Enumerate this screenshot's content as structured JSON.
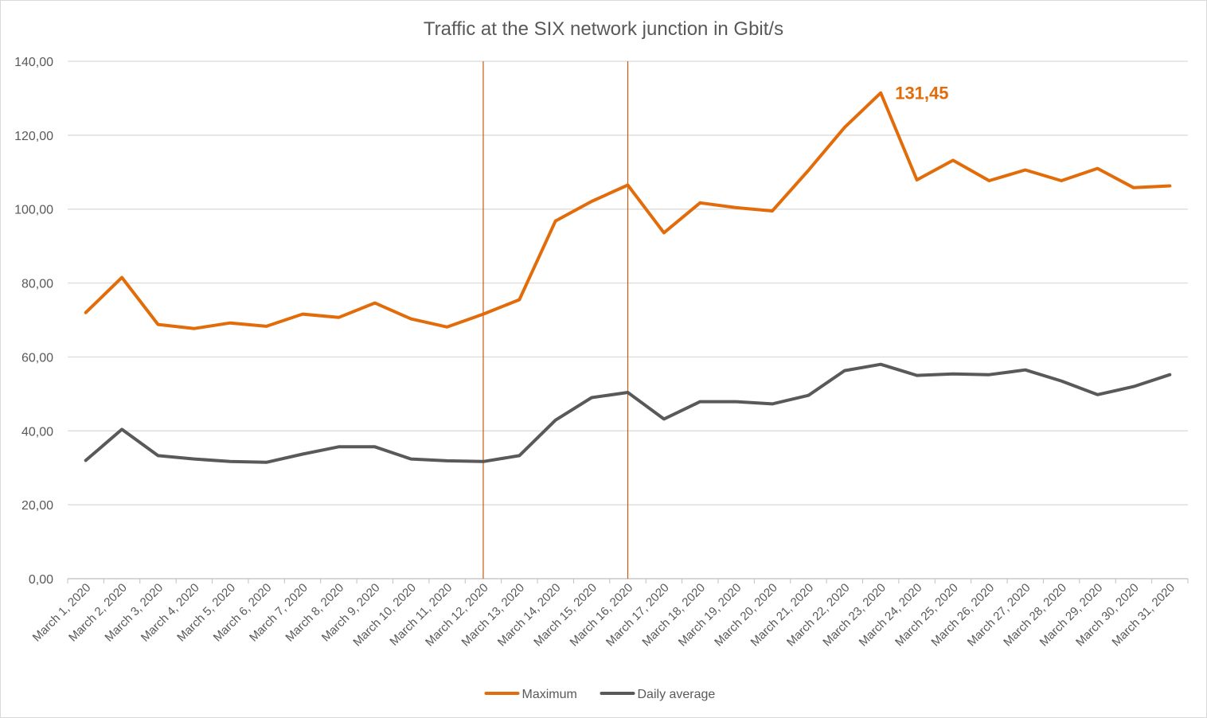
{
  "chart_data": {
    "type": "line",
    "title": "Traffic at the SIX network junction in Gbit/s",
    "xlabel": "",
    "ylabel": "",
    "ylim": [
      0,
      140
    ],
    "y_ticks": [
      "0,00",
      "20,00",
      "40,00",
      "60,00",
      "80,00",
      "100,00",
      "120,00",
      "140,00"
    ],
    "grid": true,
    "legend_position": "bottom",
    "categories": [
      "March 1, 2020",
      "March 2, 2020",
      "March 3, 2020",
      "March 4, 2020",
      "March 5, 2020",
      "March 6, 2020",
      "March 7, 2020",
      "March 8, 2020",
      "March 9, 2020",
      "March 10, 2020",
      "March 11, 2020",
      "March 12, 2020",
      "March 13, 2020",
      "March 14, 2020",
      "March 15, 2020",
      "March 16, 2020",
      "March 17, 2020",
      "March 18, 2020",
      "March 19, 2020",
      "March 20, 2020",
      "March 21, 2020",
      "March 22, 2020",
      "March 23, 2020",
      "March 24, 2020",
      "March 25, 2020",
      "March 26, 2020",
      "March 27, 2020",
      "March 28, 2020",
      "March 29, 2020",
      "March 30, 2020",
      "March 31, 2020"
    ],
    "series": [
      {
        "name": "Maximum",
        "color": "#E36C0A",
        "values": [
          72.0,
          81.5,
          68.8,
          67.7,
          69.2,
          68.3,
          71.6,
          70.7,
          74.6,
          70.3,
          68.1,
          71.6,
          75.5,
          96.8,
          102.1,
          106.5,
          93.6,
          101.7,
          100.4,
          99.5,
          110.5,
          122.1,
          131.45,
          107.9,
          113.2,
          107.7,
          110.6,
          107.7,
          111.0,
          105.8,
          106.3
        ]
      },
      {
        "name": "Daily average",
        "color": "#595959",
        "values": [
          32.0,
          40.4,
          33.3,
          32.4,
          31.7,
          31.5,
          33.7,
          35.7,
          35.7,
          32.4,
          31.9,
          31.7,
          33.3,
          42.9,
          49.0,
          50.4,
          43.2,
          47.9,
          47.9,
          47.3,
          49.6,
          56.3,
          58.0,
          55.0,
          55.4,
          55.2,
          56.5,
          53.5,
          49.8,
          52.0,
          55.2
        ]
      }
    ],
    "reference_lines": [
      "March 12, 2020",
      "March 16, 2020"
    ],
    "reference_line_color": "#C55A11",
    "annotations": [
      {
        "text": "131,45",
        "category": "March 23, 2020",
        "series": "Maximum",
        "color": "#E36C0A"
      }
    ],
    "colors": {
      "grid": "#d9d9d9",
      "axis": "#bfbfbf",
      "text": "#595959"
    }
  }
}
